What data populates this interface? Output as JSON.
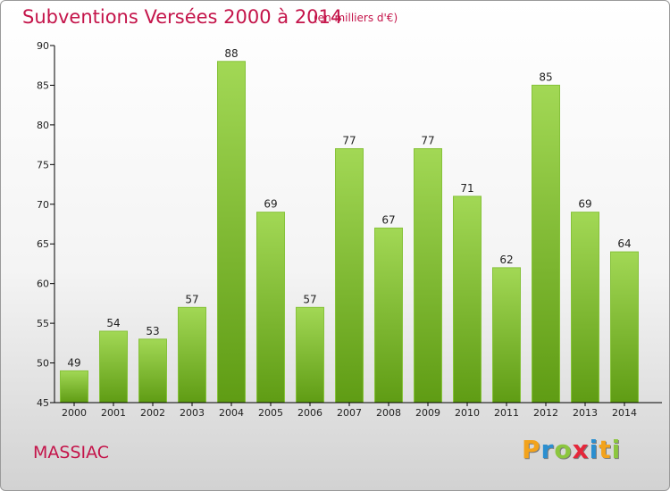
{
  "header": {
    "title": "Subventions Versées 2000 à 2014",
    "unit": "(en milliers d'€)"
  },
  "footer": {
    "city": "MASSIAC",
    "brand_letters": [
      "P",
      "r",
      "o",
      "x",
      "i",
      "t",
      "i"
    ],
    "brand_colors": [
      "#f3a31c",
      "#2b8fd0",
      "#8cc63f",
      "#e5273b",
      "#2b8fd0",
      "#f3a31c",
      "#8cc63f"
    ]
  },
  "colors": {
    "bar_light": "#a2d855",
    "bar_dark": "#5f9c14",
    "title": "#c4144a",
    "axis": "#000000"
  },
  "chart_data": {
    "type": "bar",
    "categories": [
      "2000",
      "2001",
      "2002",
      "2003",
      "2004",
      "2005",
      "2006",
      "2007",
      "2008",
      "2009",
      "2010",
      "2011",
      "2012",
      "2013",
      "2014"
    ],
    "values": [
      49,
      54,
      53,
      57,
      88,
      69,
      57,
      77,
      67,
      77,
      71,
      62,
      85,
      69,
      64
    ],
    "title": "Subventions Versées 2000 à 2014",
    "subtitle": "(en milliers d'€)",
    "xlabel": "",
    "ylabel": "",
    "ylim": [
      45,
      90
    ],
    "yticks": [
      45,
      50,
      55,
      60,
      65,
      70,
      75,
      80,
      85,
      90
    ],
    "grid": false,
    "data_labels": true
  }
}
